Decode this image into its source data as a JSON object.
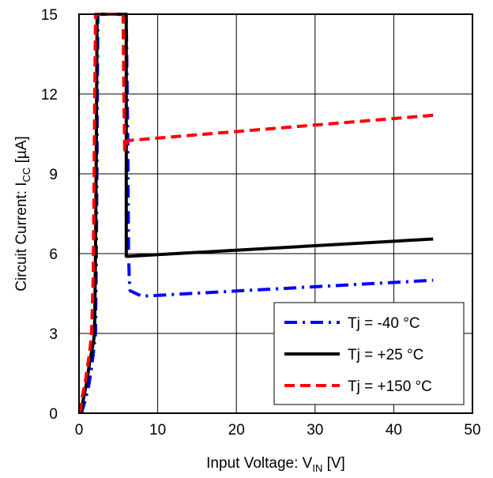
{
  "chart_data": {
    "type": "line",
    "xlabel": {
      "main": "Input Voltage: V",
      "sub": "IN",
      "unit": " [V]"
    },
    "ylabel": {
      "main": "Circuit Current: I",
      "sub": "CC",
      "unit": " [µA]"
    },
    "xlim": [
      0,
      50
    ],
    "ylim": [
      0,
      15
    ],
    "x_ticks": [
      0,
      10,
      20,
      30,
      40,
      50
    ],
    "y_ticks": [
      0,
      3,
      6,
      9,
      12,
      15
    ],
    "grid": true,
    "legend_position": "bottom-right",
    "series": [
      {
        "name": "Tj = -40 °C",
        "color": "#0000ff",
        "style": "dashdot",
        "x": [
          0.3,
          0.8,
          1.2,
          1.5,
          1.8,
          2.1,
          2.2,
          2.3,
          2.35,
          2.4,
          6.0,
          6.2,
          6.3,
          6.4,
          6.5,
          8.0,
          45.0
        ],
        "y": [
          0.0,
          0.5,
          1.0,
          1.5,
          2.2,
          3.0,
          6.0,
          10.0,
          13.0,
          15.0,
          15.0,
          10.0,
          6.0,
          5.0,
          4.6,
          4.4,
          5.0
        ]
      },
      {
        "name": "Tj = +25 °C",
        "color": "#000000",
        "style": "solid",
        "x": [
          0.2,
          0.6,
          1.0,
          1.3,
          1.6,
          1.9,
          2.0,
          2.1,
          2.2,
          2.3,
          6.0,
          6.0,
          6.0,
          6.3,
          45.0
        ],
        "y": [
          0.0,
          0.6,
          1.2,
          1.8,
          2.3,
          2.8,
          3.5,
          6.0,
          10.0,
          15.0,
          15.0,
          10.0,
          5.9,
          5.9,
          6.55
        ]
      },
      {
        "name": "Tj = +150 °C",
        "color": "#ff0000",
        "style": "dashed",
        "x": [
          0.1,
          0.4,
          0.8,
          1.1,
          1.4,
          1.6,
          1.8,
          1.9,
          2.0,
          2.1,
          5.6,
          5.7,
          5.75,
          5.8,
          6.2,
          45.0
        ],
        "y": [
          0.0,
          0.6,
          1.2,
          1.8,
          2.4,
          3.0,
          5.0,
          8.0,
          12.0,
          15.0,
          15.0,
          12.0,
          11.0,
          9.9,
          10.25,
          11.2
        ]
      }
    ]
  }
}
